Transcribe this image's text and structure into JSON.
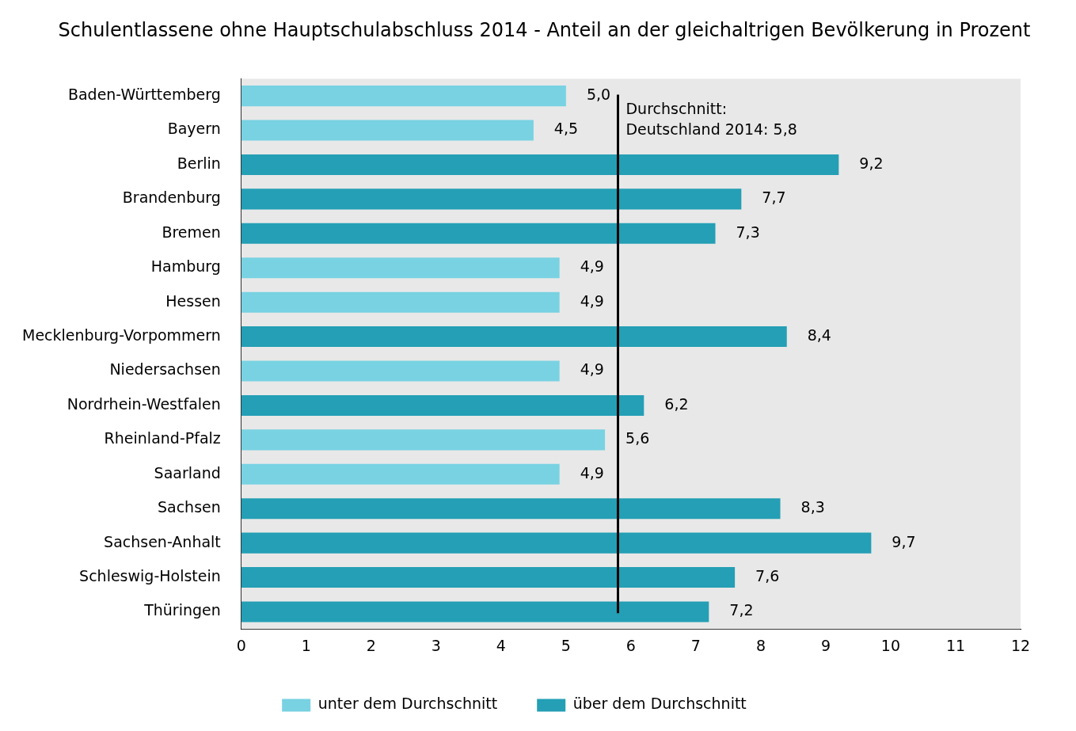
{
  "chart_data": {
    "type": "bar",
    "orientation": "horizontal",
    "stacked": true,
    "title": "Schulentlassene ohne Hauptschulabschluss 2014 - Anteil an der gleichaltrigen Bevölkerung in Prozent",
    "categories": [
      "Baden-Württemberg",
      "Bayern",
      "Berlin",
      "Brandenburg",
      "Bremen",
      "Hamburg",
      "Hessen",
      "Mecklenburg-Vorpommern",
      "Niedersachsen",
      "Nordrhein-Westfalen",
      "Rheinland-Pfalz",
      "Saarland",
      "Sachsen",
      "Sachsen-Anhalt",
      "Schleswig-Holstein",
      "Thüringen"
    ],
    "series": [
      {
        "name": "unter dem Durchschnitt",
        "color": "#78d2e2",
        "values": [
          5.0,
          4.5,
          null,
          null,
          null,
          4.9,
          4.9,
          null,
          4.9,
          null,
          5.6,
          4.9,
          null,
          null,
          null,
          null
        ],
        "value_labels": [
          "5,0",
          "4,5",
          null,
          null,
          null,
          "4,9",
          "4,9",
          null,
          "4,9",
          null,
          "5,6",
          "4,9",
          null,
          null,
          null,
          null
        ]
      },
      {
        "name": "über dem Durchschnitt",
        "color": "#249fb5",
        "values": [
          null,
          null,
          9.2,
          7.7,
          7.3,
          null,
          null,
          8.4,
          null,
          6.2,
          null,
          null,
          8.3,
          9.7,
          7.6,
          7.2
        ],
        "value_labels": [
          null,
          null,
          "9,2",
          "7,7",
          "7,3",
          null,
          null,
          "8,4",
          null,
          "6,2",
          null,
          null,
          "8,3",
          "9,7",
          "7,6",
          "7,2"
        ]
      }
    ],
    "xlim": [
      0,
      12
    ],
    "xticks": [
      0,
      1,
      2,
      3,
      4,
      5,
      6,
      7,
      8,
      9,
      10,
      11,
      12
    ],
    "ref_lines": [
      {
        "axis": "x",
        "value": 5.8,
        "label": "Durchschnitt:\nDeutschland 2014: 5,8",
        "color": "#000000"
      }
    ],
    "legend": "bottom",
    "grid": false
  }
}
